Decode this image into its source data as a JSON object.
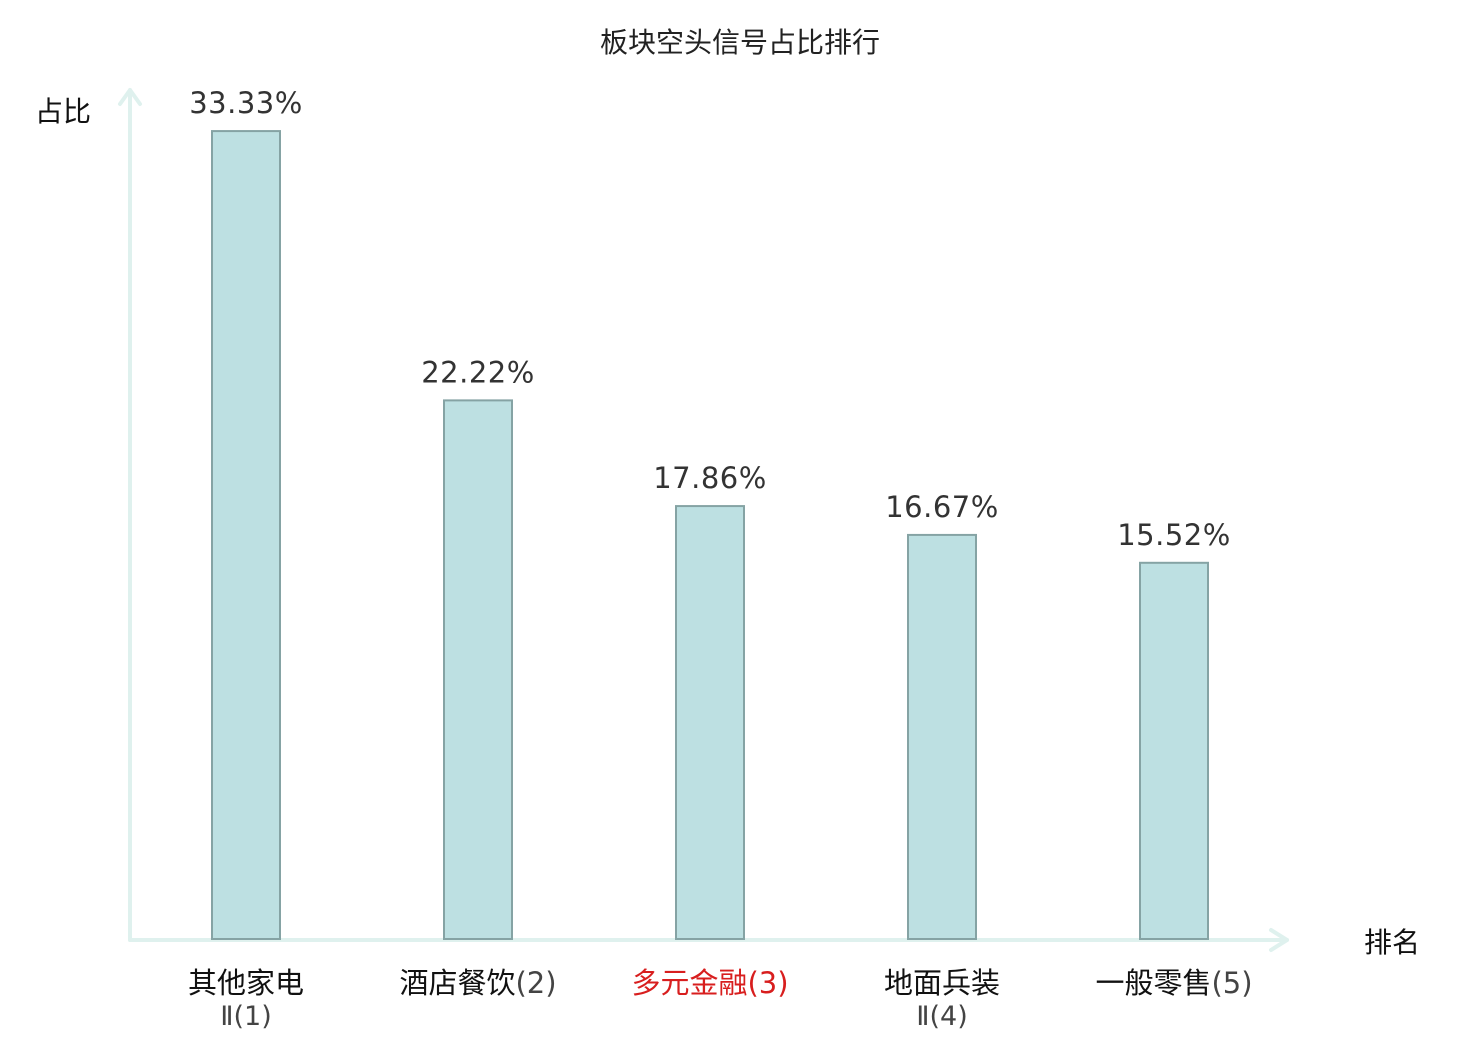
{
  "colors": {
    "bar_fill": "#bde0e2",
    "bar_stroke": "#85a3a4",
    "axis": "#dff1ee",
    "label_normal": "#111111",
    "label_rank_suffix": "#444444",
    "label_highlight": "#d81e1e"
  },
  "chart_data": {
    "type": "bar",
    "title": "板块空头信号占比排行",
    "xlabel": "排名",
    "ylabel": "占比",
    "ylim": [
      0,
      35
    ],
    "grid": false,
    "legend": "none",
    "categories": [
      "其他家电Ⅱ(1)",
      "酒店餐饮(2)",
      "多元金融(3)",
      "地面兵装Ⅱ(4)",
      "一般零售(5)"
    ],
    "category_lines": [
      {
        "main": "其他家电",
        "suffix": "",
        "second": "Ⅱ(1)"
      },
      {
        "main": "酒店餐饮",
        "suffix": "(2)",
        "second": ""
      },
      {
        "main": "多元金融",
        "suffix": "(3)",
        "second": ""
      },
      {
        "main": "地面兵装",
        "suffix": "",
        "second": "Ⅱ(4)"
      },
      {
        "main": "一般零售",
        "suffix": "(5)",
        "second": ""
      }
    ],
    "values": [
      33.33,
      22.22,
      17.86,
      16.67,
      15.52
    ],
    "value_labels": [
      "33.33%",
      "22.22%",
      "17.86%",
      "16.67%",
      "15.52%"
    ],
    "highlight_index": 2
  }
}
